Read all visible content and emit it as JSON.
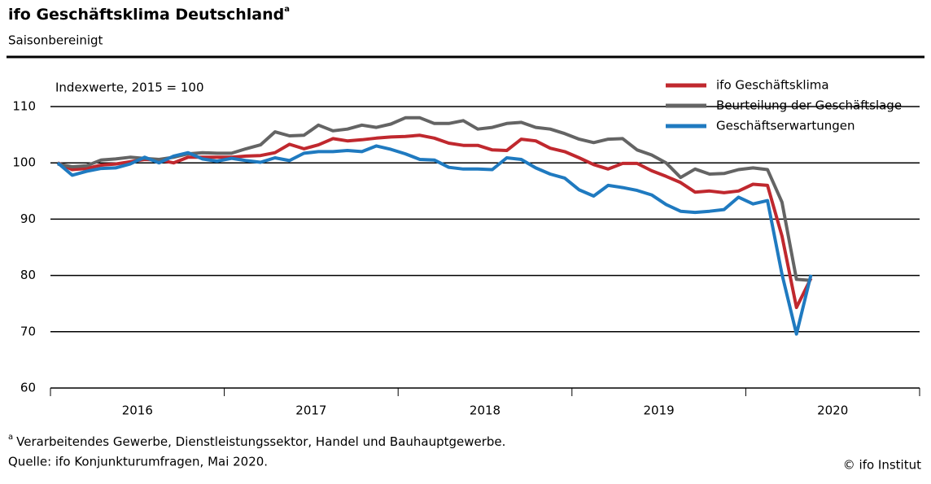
{
  "chart_data": {
    "type": "line",
    "title": "ifo Geschäftsklima Deutschland",
    "footnote_marker": "a",
    "subtitle": "Saisonbereinigt",
    "y_label": "Indexwerte, 2015 = 100",
    "footnote": "Verarbeitendes Gewerbe, Dienstleistungssektor, Handel und Bauhauptgewerbe.",
    "source": "Quelle: ifo Konjunkturumfragen, Mai 2020.",
    "copyright": "© ifo Institut",
    "year_bands": [
      "2016",
      "2017",
      "2018",
      "2019",
      "2020"
    ],
    "ylim": [
      60,
      110
    ],
    "yticks": [
      60,
      70,
      80,
      90,
      100,
      110
    ],
    "grid": true,
    "legend": "top-right",
    "series": [
      {
        "name": "ifo Geschäftsklima",
        "color": "#c0282e",
        "values": [
          100.0,
          98.8,
          99.0,
          99.6,
          99.8,
          100.2,
          100.6,
          100.5,
          100.0,
          101.0,
          101.0,
          101.0,
          101.0,
          101.2,
          101.3,
          101.8,
          103.3,
          102.5,
          103.2,
          104.3,
          103.9,
          104.1,
          104.4,
          104.6,
          104.7,
          104.9,
          104.4,
          103.5,
          103.1,
          103.1,
          102.3,
          102.2,
          104.2,
          103.9,
          102.6,
          102.0,
          100.9,
          99.7,
          98.9,
          99.9,
          99.9,
          98.6,
          97.6,
          96.5,
          94.8,
          95.0,
          94.7,
          95.0,
          96.2,
          96.0,
          87.0,
          74.3,
          79.5
        ]
      },
      {
        "name": "Beurteilung der Geschäftslage",
        "color": "#646464",
        "values": [
          99.8,
          99.3,
          99.5,
          100.5,
          100.7,
          101.0,
          100.8,
          100.6,
          101.0,
          101.6,
          101.8,
          101.7,
          101.7,
          102.5,
          103.2,
          105.5,
          104.8,
          104.9,
          106.7,
          105.7,
          106.0,
          106.7,
          106.3,
          106.9,
          108.0,
          108.0,
          107.0,
          107.0,
          107.5,
          106.0,
          106.3,
          107.0,
          107.2,
          106.3,
          106.0,
          105.2,
          104.2,
          103.6,
          104.2,
          104.3,
          102.3,
          101.4,
          100.0,
          97.4,
          98.9,
          98.0,
          98.1,
          98.8,
          99.1,
          98.8,
          93.0,
          79.3,
          79.1
        ]
      },
      {
        "name": "Geschäftserwartungen",
        "color": "#1f7ac0",
        "values": [
          100.0,
          97.8,
          98.5,
          99.0,
          99.1,
          99.8,
          101.0,
          100.0,
          101.2,
          101.8,
          100.7,
          100.3,
          100.8,
          100.4,
          100.1,
          100.9,
          100.4,
          101.7,
          102.0,
          102.0,
          102.2,
          102.0,
          103.0,
          102.4,
          101.6,
          100.6,
          100.5,
          99.2,
          98.9,
          98.9,
          98.8,
          100.9,
          100.6,
          99.1,
          98.0,
          97.3,
          95.2,
          94.1,
          96.0,
          95.6,
          95.1,
          94.3,
          92.6,
          91.4,
          91.2,
          91.4,
          91.7,
          93.9,
          92.7,
          93.3,
          80.2,
          69.6,
          80.1
        ]
      }
    ]
  }
}
